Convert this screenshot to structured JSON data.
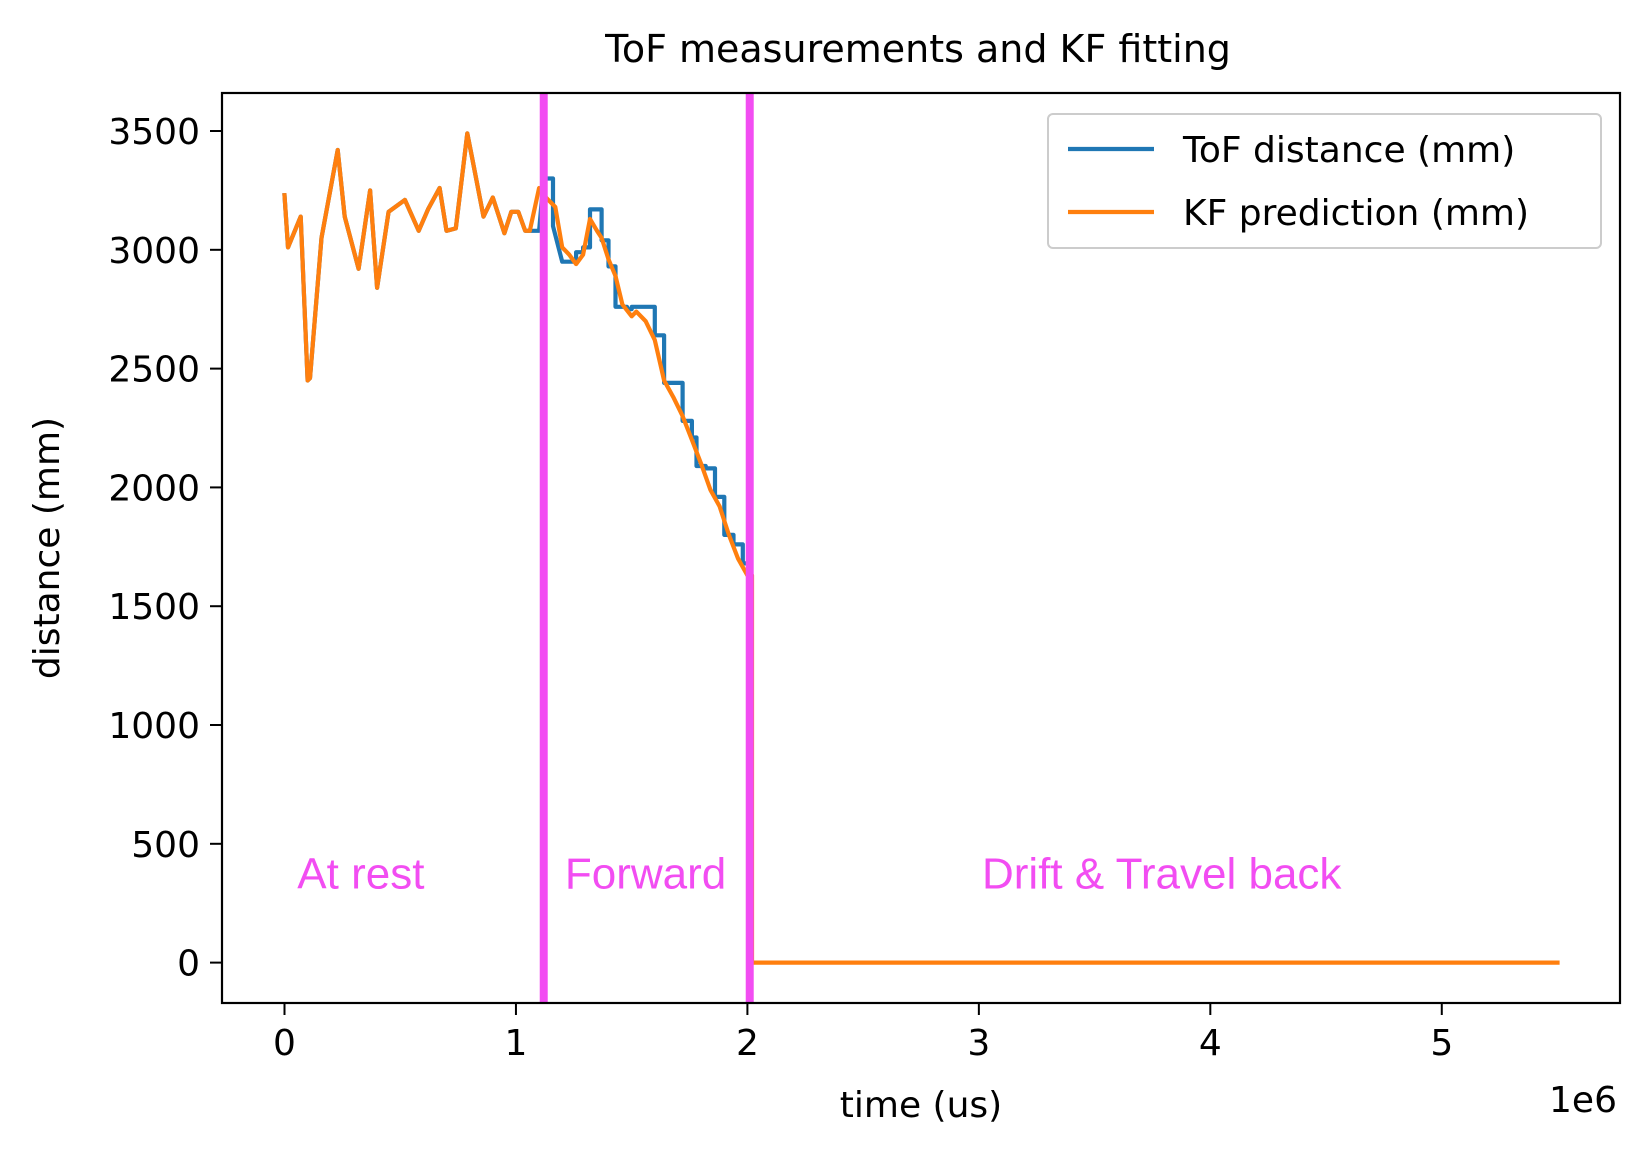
{
  "chart_data": {
    "type": "line",
    "title": "ToF measurements and KF fitting",
    "xlabel": "time (us)",
    "ylabel": "distance (mm)",
    "x_offset_label": "1e6",
    "xlim": [
      -270000,
      5770000
    ],
    "ylim": [
      -170,
      3660
    ],
    "x_ticks": [
      {
        "value": 0,
        "label": "0"
      },
      {
        "value": 1000000,
        "label": "1"
      },
      {
        "value": 2000000,
        "label": "2"
      },
      {
        "value": 3000000,
        "label": "3"
      },
      {
        "value": 4000000,
        "label": "4"
      },
      {
        "value": 5000000,
        "label": "5"
      }
    ],
    "y_ticks": [
      {
        "value": 0,
        "label": "0"
      },
      {
        "value": 500,
        "label": "500"
      },
      {
        "value": 1000,
        "label": "1000"
      },
      {
        "value": 1500,
        "label": "1500"
      },
      {
        "value": 2000,
        "label": "2000"
      },
      {
        "value": 2500,
        "label": "2500"
      },
      {
        "value": 3000,
        "label": "3000"
      },
      {
        "value": 3500,
        "label": "3500"
      }
    ],
    "grid": false,
    "legend_position": "top-right",
    "series": [
      {
        "name": "ToF distance (mm)",
        "color": "#1f77b4",
        "x": [
          0,
          15000,
          70000,
          100000,
          110000,
          160000,
          230000,
          260000,
          320000,
          370000,
          400000,
          450000,
          520000,
          580000,
          620000,
          670000,
          700000,
          740000,
          790000,
          810000,
          860000,
          900000,
          950000,
          980000,
          1010000,
          1040000,
          1060000,
          1100000,
          1120000,
          1160000,
          1160000,
          1200000,
          1210000,
          1260000,
          1260000,
          1290000,
          1290000,
          1320000,
          1320000,
          1370000,
          1370000,
          1400000,
          1400000,
          1430000,
          1430000,
          1480000,
          1480000,
          1500000,
          1500000,
          1540000,
          1560000,
          1600000,
          1600000,
          1640000,
          1640000,
          1660000,
          1660000,
          1720000,
          1720000,
          1760000,
          1760000,
          1780000,
          1780000,
          1820000,
          1820000,
          1860000,
          1860000,
          1900000,
          1900000,
          1940000,
          1940000,
          1980000,
          1980000,
          2000000
        ],
        "y": [
          3230,
          3010,
          3140,
          2450,
          2460,
          3050,
          3420,
          3140,
          2920,
          3250,
          2840,
          3160,
          3210,
          3080,
          3170,
          3260,
          3080,
          3090,
          3490,
          3390,
          3140,
          3220,
          3070,
          3160,
          3160,
          3080,
          3080,
          3080,
          3300,
          3300,
          3100,
          2950,
          2950,
          2950,
          2990,
          2990,
          3010,
          3010,
          3170,
          3170,
          3040,
          3040,
          2930,
          2930,
          2760,
          2760,
          2750,
          2750,
          2760,
          2760,
          2760,
          2760,
          2640,
          2640,
          2440,
          2440,
          2440,
          2440,
          2280,
          2280,
          2210,
          2210,
          2090,
          2090,
          2080,
          2080,
          1960,
          1960,
          1800,
          1800,
          1760,
          1760,
          1680,
          1680
        ]
      },
      {
        "name": "KF prediction (mm)",
        "color": "#ff7f0e",
        "x": [
          0,
          15000,
          70000,
          100000,
          110000,
          160000,
          230000,
          260000,
          320000,
          370000,
          400000,
          450000,
          520000,
          580000,
          620000,
          670000,
          700000,
          740000,
          790000,
          810000,
          860000,
          900000,
          950000,
          980000,
          1010000,
          1040000,
          1060000,
          1100000,
          1120000,
          1170000,
          1200000,
          1230000,
          1260000,
          1290000,
          1320000,
          1350000,
          1370000,
          1400000,
          1430000,
          1460000,
          1500000,
          1520000,
          1560000,
          1600000,
          1640000,
          1680000,
          1720000,
          1760000,
          1800000,
          1840000,
          1880000,
          1920000,
          1960000,
          2000000,
          2020000,
          2020000,
          5500000
        ],
        "y": [
          3230,
          3010,
          3140,
          2450,
          2460,
          3050,
          3420,
          3140,
          2920,
          3250,
          2840,
          3160,
          3210,
          3080,
          3170,
          3260,
          3080,
          3090,
          3490,
          3390,
          3140,
          3220,
          3070,
          3160,
          3160,
          3080,
          3080,
          3260,
          3230,
          3180,
          3010,
          2980,
          2940,
          2980,
          3130,
          3080,
          3050,
          2960,
          2890,
          2770,
          2720,
          2740,
          2700,
          2620,
          2450,
          2380,
          2300,
          2200,
          2100,
          1990,
          1920,
          1800,
          1700,
          1630,
          1630,
          0,
          0
        ]
      }
    ],
    "vlines": [
      {
        "x": 1120000,
        "color": "#f24df2"
      },
      {
        "x": 2010000,
        "color": "#f24df2"
      }
    ],
    "annotations": [
      {
        "text": "At rest",
        "x": 330000,
        "y": 370,
        "color": "#f24df2"
      },
      {
        "text": "Forward",
        "x": 1560000,
        "y": 370,
        "color": "#f24df2"
      },
      {
        "text": "Drift & Travel back",
        "x": 3790000,
        "y": 370,
        "color": "#f24df2"
      }
    ]
  }
}
